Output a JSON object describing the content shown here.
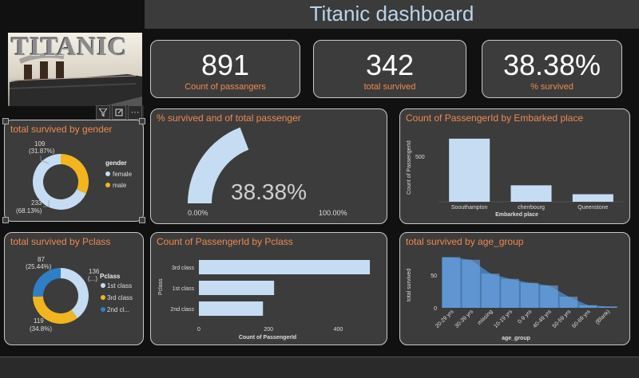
{
  "header": {
    "title": "Titanic dashboard"
  },
  "logo": {
    "text": "TITANIC"
  },
  "toolbar": {
    "filter_icon": "filter-icon",
    "focus_icon": "focus-mode-icon",
    "more_icon": "more-options-icon",
    "more_glyph": "···"
  },
  "kpis": [
    {
      "value": "891",
      "label": "Count of passangers"
    },
    {
      "value": "342",
      "label": "total survived"
    },
    {
      "value": "38.38%",
      "label": "% survived"
    }
  ],
  "gender_chart": {
    "title": "total survived by gender",
    "legend_title": "gender",
    "labels": {
      "top": "109",
      "top_pct": "(31.87%)",
      "bottom": "233",
      "bottom_pct": "(68.13%)"
    },
    "chart_data": {
      "type": "pie",
      "slices": [
        {
          "name": "female",
          "value": 233,
          "percent": 68.13,
          "color": "#c5dcf3"
        },
        {
          "name": "male",
          "value": 109,
          "percent": 31.87,
          "color": "#f2b51f"
        }
      ]
    }
  },
  "gauge_chart": {
    "title": "% survived and of total passenger",
    "value_label": "38.38%",
    "min_label": "0.00%",
    "max_label": "100.00%",
    "chart_data": {
      "type": "gauge",
      "value": 38.38,
      "min": 0,
      "max": 100,
      "color": "#c5dcf3"
    }
  },
  "embarked_chart": {
    "title": "Count of PassengerId by Embarked place",
    "xlabel": "Embarked place",
    "ylabel": "Count of PassengerId",
    "yticks": [
      "500"
    ],
    "chart_data": {
      "type": "bar",
      "categories": [
        "Soouthampton",
        "cherrbourg",
        "Queenstone"
      ],
      "values": [
        644,
        168,
        77
      ],
      "ylim": [
        0,
        700
      ],
      "color": "#c5dcf3"
    }
  },
  "pclass_chart": {
    "title": "total survived by Pclass",
    "legend_title": "Pclass",
    "labels": {
      "a": "87",
      "a_pct": "(25.44%)",
      "b": "136",
      "b_pct": "(...)",
      "c": "119",
      "c_pct": "(34.8%)"
    },
    "chart_data": {
      "type": "pie",
      "slices": [
        {
          "name": "1st class",
          "value": 136,
          "color": "#c5dcf3"
        },
        {
          "name": "3rd class",
          "value": 119,
          "color": "#f2b51f"
        },
        {
          "name": "2nd cl...",
          "value": 87,
          "color": "#2f7fc7"
        }
      ]
    }
  },
  "pclass_count_chart": {
    "title": "Count of PassengerId by Pclass",
    "xlabel": "Count of PassengerId",
    "ylabel": "Pclass",
    "xticks": [
      "0",
      "200",
      "400"
    ],
    "chart_data": {
      "type": "bar",
      "orientation": "horizontal",
      "categories": [
        "3rd class",
        "1st class",
        "2nd class"
      ],
      "values": [
        491,
        216,
        184
      ],
      "xlim": [
        0,
        500
      ],
      "color": "#c5dcf3"
    }
  },
  "age_chart": {
    "title": "total survived by age_group",
    "xlabel": "age_group",
    "ylabel": "total survived",
    "yticks": [
      "0",
      "50"
    ],
    "chart_data": {
      "type": "area",
      "categories": [
        "20-29 yrs",
        "30-39 yrs",
        "missing",
        "10-19 yrs",
        "0-9 yrs",
        "40-49 yrs",
        "50-59 yrs",
        "60-69 yrs",
        "(Blank)"
      ],
      "values": [
        77,
        73,
        52,
        44,
        38,
        34,
        17,
        4,
        2
      ],
      "ylim": [
        0,
        80
      ],
      "color": "#4b8fd6"
    }
  }
}
